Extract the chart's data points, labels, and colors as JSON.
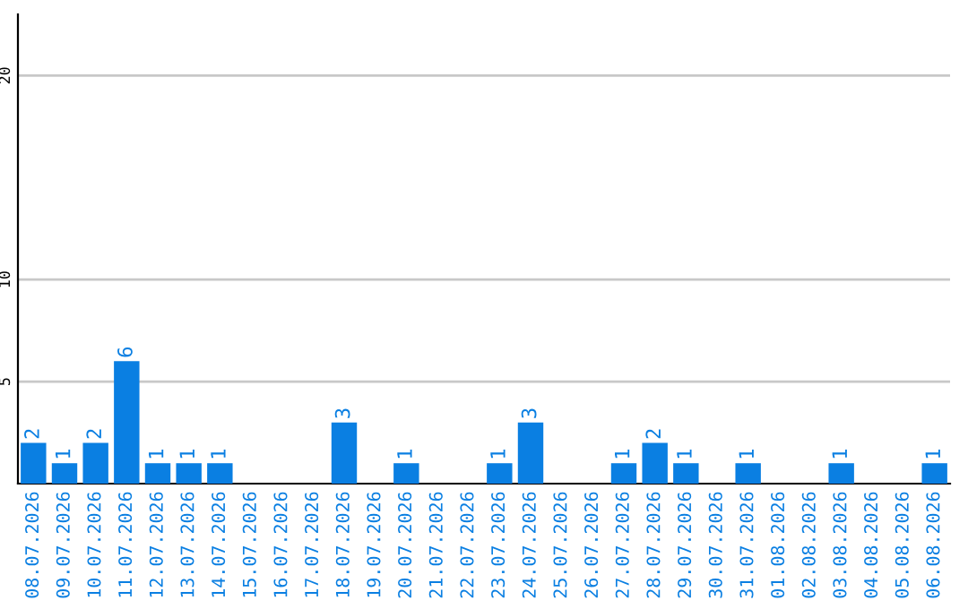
{
  "chart_data": {
    "type": "bar",
    "categories": [
      "08.07.2026",
      "09.07.2026",
      "10.07.2026",
      "11.07.2026",
      "12.07.2026",
      "13.07.2026",
      "14.07.2026",
      "15.07.2026",
      "16.07.2026",
      "17.07.2026",
      "18.07.2026",
      "19.07.2026",
      "20.07.2026",
      "21.07.2026",
      "22.07.2026",
      "23.07.2026",
      "24.07.2026",
      "25.07.2026",
      "26.07.2026",
      "27.07.2026",
      "28.07.2026",
      "29.07.2026",
      "30.07.2026",
      "31.07.2026",
      "01.08.2026",
      "02.08.2026",
      "03.08.2026",
      "04.08.2026",
      "05.08.2026",
      "06.08.2026"
    ],
    "values": [
      2,
      1,
      2,
      6,
      1,
      1,
      1,
      0,
      0,
      0,
      3,
      0,
      1,
      0,
      0,
      1,
      3,
      0,
      0,
      1,
      2,
      1,
      0,
      1,
      0,
      0,
      1,
      0,
      0,
      1
    ],
    "value_labels": [
      "2",
      "1",
      "2",
      "6",
      "1",
      "1",
      "1",
      null,
      null,
      null,
      "3",
      null,
      "1",
      null,
      null,
      "1",
      "3",
      null,
      null,
      "1",
      "2",
      "1",
      null,
      "1",
      null,
      null,
      "1",
      null,
      null,
      "1"
    ],
    "color": "#0a7fe2",
    "ylim": [
      0,
      23
    ],
    "yticks": [
      5,
      10,
      20
    ],
    "grid": "y"
  }
}
